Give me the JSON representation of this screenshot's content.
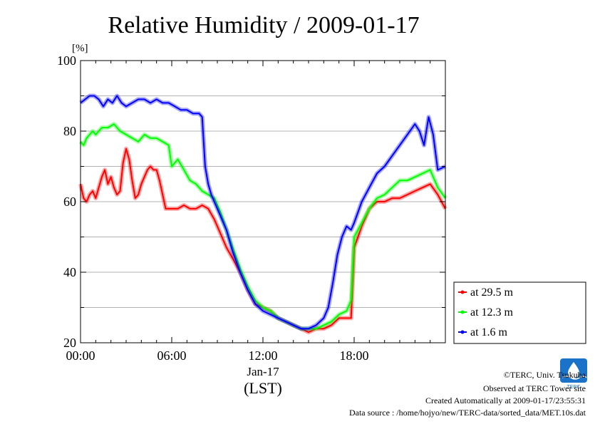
{
  "chart_data": {
    "type": "line",
    "title": "Relative Humidity / 2009-01-17",
    "ylabel": "[%]",
    "xlabel": "(LST)",
    "date_label": "Jan-17",
    "xlim": [
      0,
      24
    ],
    "ylim": [
      20,
      100
    ],
    "x_ticks": [
      0,
      6,
      12,
      18
    ],
    "x_tick_labels": [
      "00:00",
      "06:00",
      "12:00",
      "18:00"
    ],
    "y_ticks": [
      20,
      40,
      60,
      80,
      100
    ],
    "y_tick_labels": [
      "20",
      "40",
      "60",
      "80",
      "100"
    ],
    "grid": true,
    "legend_position": "right-bottom",
    "series": [
      {
        "name": "at 29.5 m",
        "color": "#ff0000",
        "x": [
          0,
          0.2,
          0.4,
          0.6,
          0.8,
          1.0,
          1.2,
          1.4,
          1.6,
          1.8,
          2.0,
          2.2,
          2.4,
          2.6,
          2.8,
          3.0,
          3.2,
          3.4,
          3.6,
          3.8,
          4.0,
          4.2,
          4.4,
          4.6,
          4.8,
          5.0,
          5.2,
          5.4,
          5.6,
          5.8,
          6.0,
          6.4,
          6.8,
          7.2,
          7.6,
          8.0,
          8.4,
          8.8,
          9.2,
          9.6,
          10.0,
          10.5,
          11.0,
          11.5,
          12.0,
          12.5,
          13.0,
          13.5,
          14.0,
          14.5,
          15.0,
          15.5,
          16.0,
          16.5,
          17.0,
          17.5,
          17.8,
          18.0,
          18.5,
          19.0,
          19.5,
          20.0,
          20.5,
          21.0,
          21.5,
          22.0,
          22.5,
          23.0,
          23.5,
          24.0
        ],
        "values": [
          65,
          61,
          60,
          62,
          63,
          61,
          64,
          67,
          69,
          65,
          67,
          64,
          62,
          63,
          71,
          75,
          72,
          66,
          61,
          62,
          65,
          67,
          69,
          70,
          69,
          69,
          66,
          62,
          58,
          58,
          58,
          58,
          59,
          58,
          58,
          59,
          58,
          55,
          51,
          47,
          44,
          40,
          35,
          31,
          30,
          29,
          27,
          26,
          25,
          24,
          23,
          24,
          24,
          25,
          27,
          27,
          27,
          47,
          53,
          58,
          60,
          60,
          61,
          61,
          62,
          63,
          64,
          65,
          62,
          58
        ]
      },
      {
        "name": "at 12.3 m",
        "color": "#00ff00",
        "x": [
          0,
          0.2,
          0.4,
          0.6,
          0.8,
          1.0,
          1.4,
          1.8,
          2.2,
          2.6,
          3.0,
          3.4,
          3.8,
          4.2,
          4.6,
          5.0,
          5.4,
          5.8,
          6.0,
          6.4,
          6.8,
          7.2,
          7.6,
          8.0,
          8.4,
          8.8,
          9.2,
          9.6,
          10.0,
          10.5,
          11.0,
          11.5,
          12.0,
          12.5,
          13.0,
          13.5,
          14.0,
          14.5,
          15.0,
          15.5,
          16.0,
          16.5,
          17.0,
          17.5,
          17.8,
          18.0,
          18.5,
          19.0,
          19.5,
          20.0,
          20.5,
          21.0,
          21.5,
          22.0,
          22.5,
          23.0,
          23.5,
          24.0
        ],
        "values": [
          77,
          76,
          78,
          79,
          80,
          79,
          81,
          81,
          82,
          80,
          79,
          78,
          77,
          79,
          78,
          78,
          77,
          76,
          70,
          72,
          69,
          66,
          65,
          63,
          62,
          61,
          57,
          52,
          47,
          41,
          36,
          32,
          30,
          29,
          27,
          26,
          25,
          24,
          24,
          24,
          25,
          26,
          28,
          29,
          32,
          50,
          54,
          58,
          61,
          62,
          64,
          66,
          66,
          67,
          68,
          69,
          64,
          61
        ]
      },
      {
        "name": "at 1.6 m",
        "color": "#0000ff",
        "x": [
          0,
          0.3,
          0.6,
          0.9,
          1.2,
          1.5,
          1.8,
          2.1,
          2.4,
          2.7,
          3.0,
          3.4,
          3.8,
          4.2,
          4.6,
          5.0,
          5.4,
          5.8,
          6.2,
          6.6,
          7.0,
          7.4,
          7.8,
          8.0,
          8.2,
          8.4,
          8.6,
          8.8,
          9.2,
          9.6,
          10.0,
          10.5,
          11.0,
          11.5,
          12.0,
          12.5,
          13.0,
          13.5,
          14.0,
          14.5,
          15.0,
          15.5,
          16.0,
          16.3,
          16.6,
          16.9,
          17.2,
          17.5,
          17.8,
          18.0,
          18.5,
          19.0,
          19.5,
          20.0,
          20.5,
          21.0,
          21.5,
          22.0,
          22.3,
          22.6,
          22.9,
          23.2,
          23.5,
          24.0
        ],
        "values": [
          88,
          89,
          90,
          90,
          89,
          87,
          89,
          88,
          90,
          88,
          87,
          88,
          89,
          89,
          88,
          89,
          88,
          88,
          87,
          86,
          86,
          85,
          85,
          84,
          70,
          65,
          62,
          60,
          56,
          52,
          46,
          40,
          35,
          31,
          29,
          28,
          27,
          26,
          25,
          24,
          24,
          25,
          27,
          30,
          37,
          45,
          50,
          53,
          52,
          54,
          60,
          64,
          68,
          70,
          73,
          76,
          79,
          82,
          80,
          76,
          84,
          79,
          69,
          70
        ]
      }
    ]
  },
  "footer": {
    "copyright": "©TERC, Univ. Tsukuba",
    "observed": "Observed at TERC Tower site",
    "created": "Created Automatically at 2009-01-17/23:55:31",
    "source": "Data source : /home/hojyo/new/TERC-data/sorted_data/MET.10s.dat"
  },
  "logo": {
    "text": "TERC",
    "icon": "terc-logo-icon",
    "color": "#1a73c8"
  }
}
